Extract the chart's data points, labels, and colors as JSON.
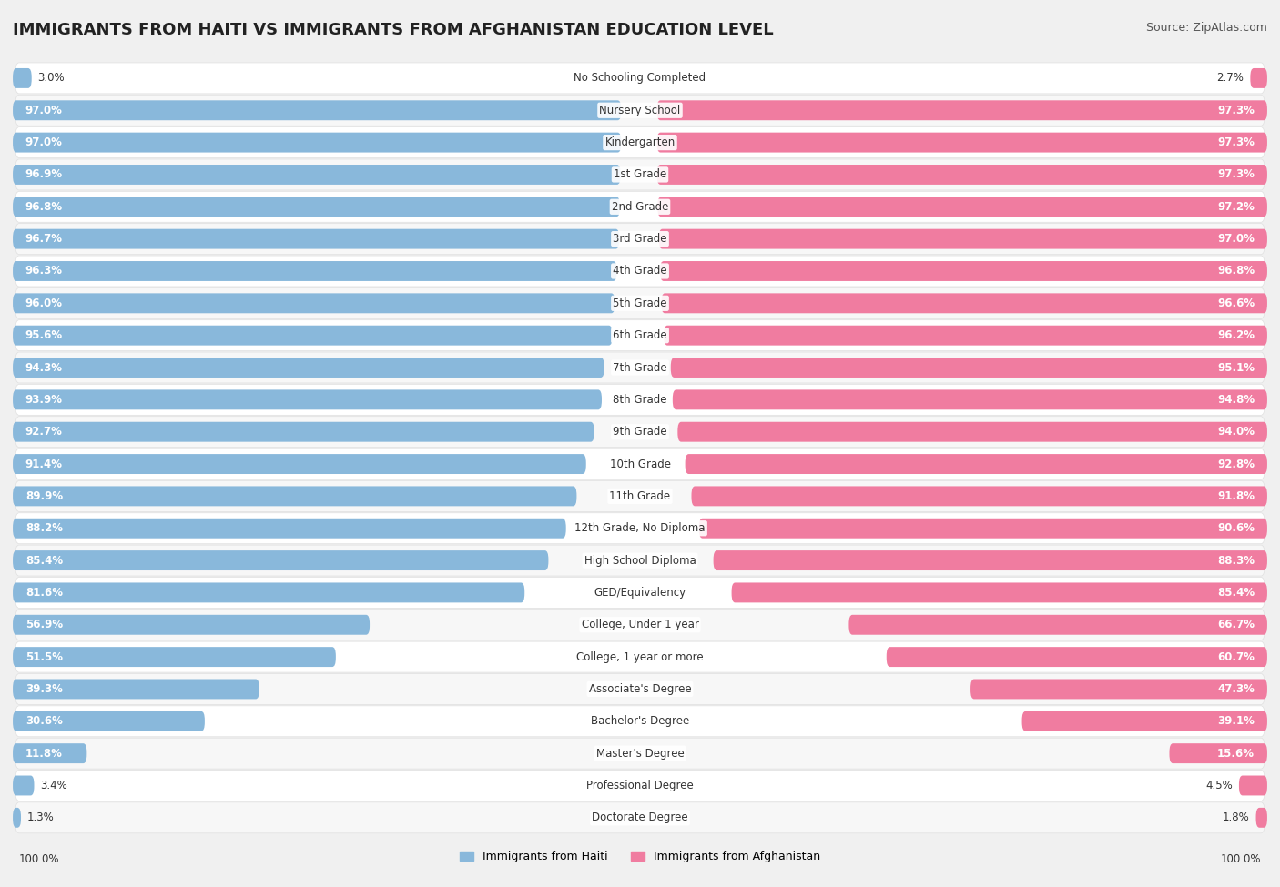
{
  "title": "IMMIGRANTS FROM HAITI VS IMMIGRANTS FROM AFGHANISTAN EDUCATION LEVEL",
  "source": "Source: ZipAtlas.com",
  "categories": [
    "No Schooling Completed",
    "Nursery School",
    "Kindergarten",
    "1st Grade",
    "2nd Grade",
    "3rd Grade",
    "4th Grade",
    "5th Grade",
    "6th Grade",
    "7th Grade",
    "8th Grade",
    "9th Grade",
    "10th Grade",
    "11th Grade",
    "12th Grade, No Diploma",
    "High School Diploma",
    "GED/Equivalency",
    "College, Under 1 year",
    "College, 1 year or more",
    "Associate's Degree",
    "Bachelor's Degree",
    "Master's Degree",
    "Professional Degree",
    "Doctorate Degree"
  ],
  "haiti_values": [
    3.0,
    97.0,
    97.0,
    96.9,
    96.8,
    96.7,
    96.3,
    96.0,
    95.6,
    94.3,
    93.9,
    92.7,
    91.4,
    89.9,
    88.2,
    85.4,
    81.6,
    56.9,
    51.5,
    39.3,
    30.6,
    11.8,
    3.4,
    1.3
  ],
  "afghanistan_values": [
    2.7,
    97.3,
    97.3,
    97.3,
    97.2,
    97.0,
    96.8,
    96.6,
    96.2,
    95.1,
    94.8,
    94.0,
    92.8,
    91.8,
    90.6,
    88.3,
    85.4,
    66.7,
    60.7,
    47.3,
    39.1,
    15.6,
    4.5,
    1.8
  ],
  "haiti_color": "#89b8db",
  "afghanistan_color": "#f07ca0",
  "row_bg_light": "#f7f7f7",
  "row_bg_white": "#ffffff",
  "row_border": "#e0e0e0",
  "background_color": "#f0f0f0",
  "legend_haiti": "Immigrants from Haiti",
  "legend_afghanistan": "Immigrants from Afghanistan",
  "axis_label": "100.0%",
  "title_fontsize": 13,
  "source_fontsize": 9,
  "bar_label_fontsize": 8.5,
  "category_fontsize": 8.5,
  "legend_fontsize": 9,
  "value_color": "#333333"
}
